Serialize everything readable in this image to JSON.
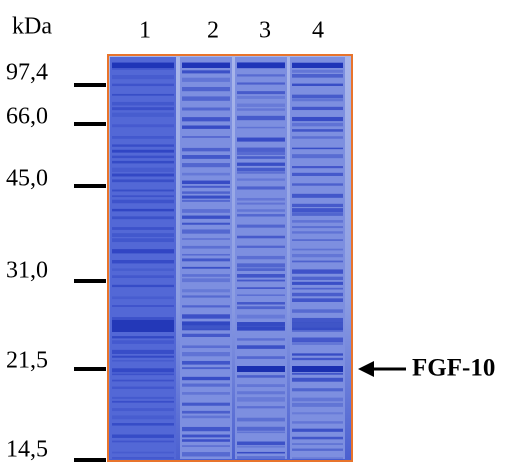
{
  "unit": "kDa",
  "lanes": [
    "1",
    "2",
    "3",
    "4"
  ],
  "markers": [
    "97,4",
    "66,0",
    "45,0",
    "31,0",
    "21,5",
    "14,5"
  ],
  "annotation": "FGF-10"
}
